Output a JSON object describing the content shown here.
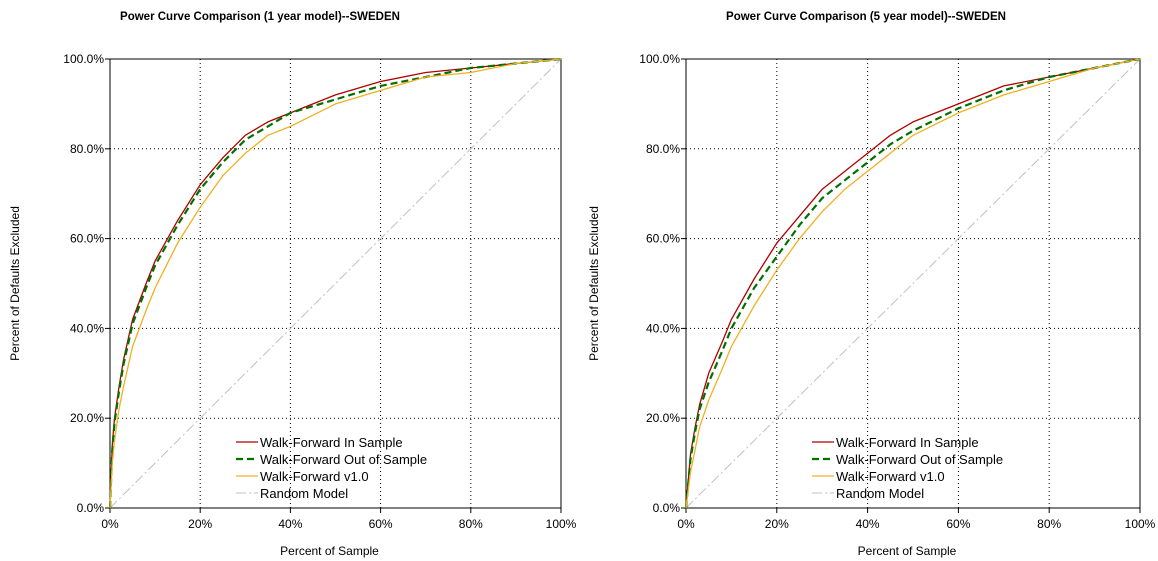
{
  "chart_data": [
    {
      "type": "line",
      "title": "Power Curve Comparison (1 year model)--SWEDEN",
      "xlabel": "Percent of Sample",
      "ylabel": "Percent of Defaults Excluded",
      "xlim": [
        0,
        100
      ],
      "ylim": [
        0,
        100
      ],
      "x_ticks": [
        "0%",
        "20%",
        "40%",
        "60%",
        "80%",
        "100%"
      ],
      "y_ticks": [
        "0.0%",
        "20.0%",
        "40.0%",
        "60.0%",
        "80.0%",
        "100.0%"
      ],
      "grid": true,
      "legend_position": "bottom-right",
      "series": [
        {
          "name": "Walk-Forward In Sample",
          "color": "#b00000",
          "dash": "solid",
          "x": [
            0,
            0.5,
            1,
            2,
            3,
            5,
            8,
            10,
            15,
            20,
            25,
            30,
            35,
            40,
            50,
            60,
            70,
            80,
            90,
            100
          ],
          "y": [
            0,
            14,
            20,
            27,
            33,
            42,
            50,
            55,
            64,
            72,
            78,
            83,
            86,
            88,
            92,
            95,
            97,
            98,
            99,
            100
          ]
        },
        {
          "name": "Walk-Forward Out of Sample",
          "color": "#007000",
          "dash": "dashed",
          "x": [
            0,
            0.5,
            1,
            2,
            3,
            5,
            8,
            10,
            15,
            20,
            25,
            30,
            35,
            40,
            50,
            60,
            70,
            80,
            90,
            100
          ],
          "y": [
            0,
            13,
            19,
            26,
            32,
            41,
            49,
            54,
            63,
            71,
            77,
            82,
            85,
            88,
            91,
            94,
            96,
            98,
            99,
            100
          ]
        },
        {
          "name": "Walk-Forward v1.0",
          "color": "#f0b020",
          "dash": "solid",
          "x": [
            0,
            0.5,
            1,
            2,
            3,
            5,
            8,
            10,
            15,
            20,
            25,
            30,
            35,
            40,
            50,
            60,
            70,
            80,
            90,
            100
          ],
          "y": [
            0,
            10,
            15,
            22,
            27,
            36,
            44,
            49,
            59,
            67,
            74,
            79,
            83,
            85,
            90,
            93,
            96,
            97,
            99,
            100
          ]
        },
        {
          "name": "Random Model",
          "color": "#c0c0c0",
          "dash": "dashdot",
          "x": [
            0,
            100
          ],
          "y": [
            0,
            100
          ]
        }
      ]
    },
    {
      "type": "line",
      "title": "Power Curve Comparison (5 year model)--SWEDEN",
      "xlabel": "Percent of Sample",
      "ylabel": "Percent of Defaults Excluded",
      "xlim": [
        0,
        100
      ],
      "ylim": [
        0,
        100
      ],
      "x_ticks": [
        "0%",
        "20%",
        "40%",
        "60%",
        "80%",
        "100%"
      ],
      "y_ticks": [
        "0.0%",
        "20.0%",
        "40.0%",
        "60.0%",
        "80.0%",
        "100.0%"
      ],
      "grid": true,
      "legend_position": "bottom-right",
      "series": [
        {
          "name": "Walk-Forward In Sample",
          "color": "#b00000",
          "dash": "solid",
          "x": [
            0,
            1,
            2,
            3,
            5,
            8,
            10,
            15,
            20,
            25,
            30,
            35,
            40,
            45,
            50,
            60,
            70,
            80,
            90,
            100
          ],
          "y": [
            0,
            12,
            18,
            23,
            30,
            37,
            42,
            51,
            59,
            65,
            71,
            75,
            79,
            83,
            86,
            90,
            94,
            96,
            98,
            100
          ]
        },
        {
          "name": "Walk-Forward Out of Sample",
          "color": "#007000",
          "dash": "dashed",
          "x": [
            0,
            1,
            2,
            3,
            5,
            8,
            10,
            15,
            20,
            25,
            30,
            35,
            40,
            45,
            50,
            60,
            70,
            80,
            90,
            100
          ],
          "y": [
            0,
            11,
            17,
            22,
            28,
            35,
            40,
            49,
            56,
            63,
            69,
            73,
            77,
            81,
            84,
            89,
            93,
            96,
            98,
            100
          ]
        },
        {
          "name": "Walk-Forward v1.0",
          "color": "#f0b020",
          "dash": "solid",
          "x": [
            0,
            1,
            2,
            3,
            5,
            8,
            10,
            15,
            20,
            25,
            30,
            35,
            40,
            45,
            50,
            60,
            70,
            80,
            90,
            100
          ],
          "y": [
            0,
            8,
            13,
            18,
            24,
            31,
            36,
            45,
            53,
            60,
            66,
            71,
            75,
            79,
            83,
            88,
            92,
            95,
            98,
            100
          ]
        },
        {
          "name": "Random Model",
          "color": "#c0c0c0",
          "dash": "dashdot",
          "x": [
            0,
            100
          ],
          "y": [
            0,
            100
          ]
        }
      ]
    }
  ]
}
